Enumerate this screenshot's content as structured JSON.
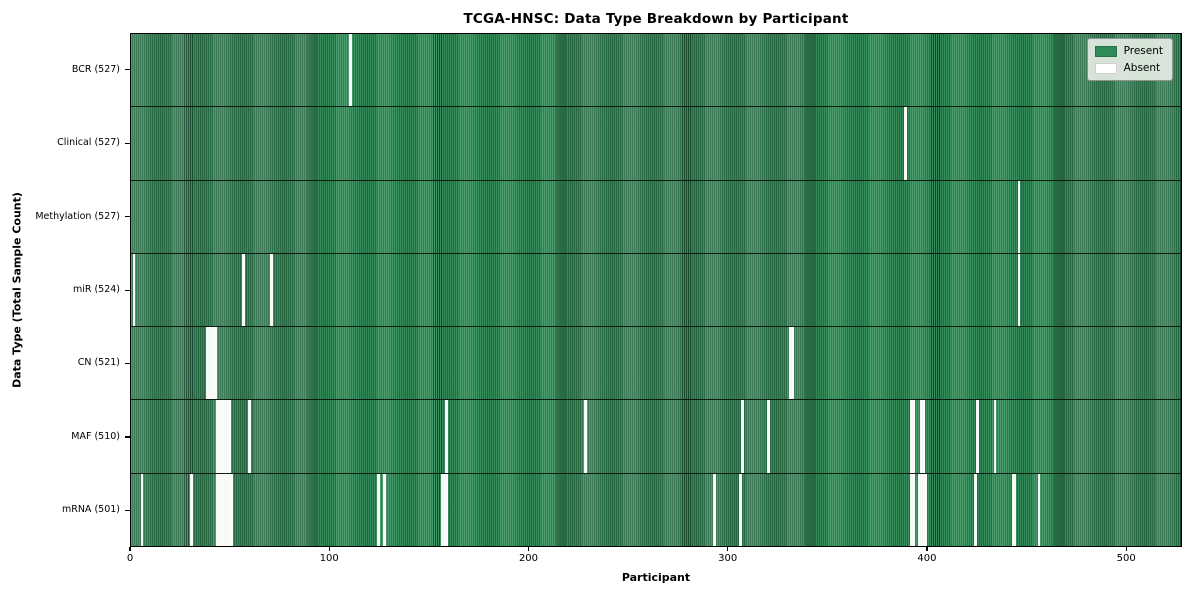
{
  "figure": {
    "title": "TCGA-HNSC: Data Type Breakdown by Participant",
    "xlabel": "Participant",
    "ylabel": "Data Type (Total Sample Count)"
  },
  "legend": {
    "items": [
      {
        "label": "Present",
        "color": "#2e8b57"
      },
      {
        "label": "Absent",
        "color": "#ffffff"
      }
    ]
  },
  "chart_data": {
    "type": "heatmap",
    "title": "TCGA-HNSC: Data Type Breakdown by Participant",
    "xlabel": "Participant",
    "ylabel": "Data Type (Total Sample Count)",
    "legend_position": "upper right",
    "x_range": [
      0,
      528
    ],
    "x_ticks": [
      0,
      100,
      200,
      300,
      400,
      500
    ],
    "n_participants": 528,
    "present_color": "#2e8b57",
    "absent_color": "#ffffff",
    "rows": [
      {
        "label": "BCR (527)",
        "data_type": "BCR",
        "total_samples": 527,
        "absent_participants": [
          110
        ]
      },
      {
        "label": "Clinical (527)",
        "data_type": "Clinical",
        "total_samples": 527,
        "absent_participants": [
          389
        ]
      },
      {
        "label": "Methylation (527)",
        "data_type": "Methylation",
        "total_samples": 527,
        "absent_participants": [
          446
        ]
      },
      {
        "label": "miR (524)",
        "data_type": "miR",
        "total_samples": 524,
        "absent_participants": [
          1,
          56,
          70,
          446
        ]
      },
      {
        "label": "CN (521)",
        "data_type": "CN",
        "total_samples": 521,
        "absent_participants": [
          38,
          39,
          40,
          41,
          42,
          331,
          332
        ]
      },
      {
        "label": "MAF (510)",
        "data_type": "MAF",
        "total_samples": 510,
        "absent_participants": [
          43,
          44,
          45,
          46,
          47,
          48,
          49,
          59,
          158,
          228,
          307,
          320,
          392,
          393,
          397,
          398,
          425,
          434
        ]
      },
      {
        "label": "mRNA (501)",
        "data_type": "mRNA",
        "total_samples": 501,
        "absent_participants": [
          5,
          30,
          43,
          44,
          45,
          46,
          47,
          48,
          49,
          50,
          124,
          127,
          156,
          157,
          158,
          293,
          306,
          392,
          393,
          396,
          397,
          398,
          399,
          424,
          443,
          444,
          456
        ]
      }
    ]
  }
}
